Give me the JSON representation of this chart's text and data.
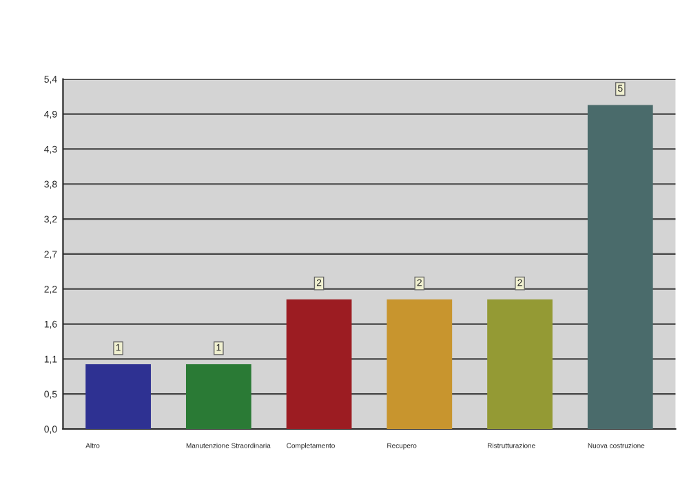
{
  "chart_data": {
    "type": "bar",
    "categories": [
      "Altro",
      "Manutenzione Straordinaria",
      "Completamento",
      "Recupero",
      "Ristrutturazione",
      "Nuova costruzione"
    ],
    "values": [
      1,
      1,
      2,
      2,
      2,
      5
    ],
    "colors": [
      "#2e3192",
      "#2a7a35",
      "#9c1c22",
      "#c8952e",
      "#949a34",
      "#4a6b6b"
    ],
    "ylim": [
      0,
      5.4
    ],
    "yticks": [
      {
        "value": 0,
        "label": "0,0"
      },
      {
        "value": 0.54,
        "label": "0,5"
      },
      {
        "value": 1.08,
        "label": "1,1"
      },
      {
        "value": 1.62,
        "label": "1,6"
      },
      {
        "value": 2.16,
        "label": "2,2"
      },
      {
        "value": 2.7,
        "label": "2,7"
      },
      {
        "value": 3.24,
        "label": "3,2"
      },
      {
        "value": 3.78,
        "label": "3,8"
      },
      {
        "value": 4.32,
        "label": "4,3"
      },
      {
        "value": 4.86,
        "label": "4,9"
      },
      {
        "value": 5.4,
        "label": "5,4"
      }
    ],
    "grid": "y",
    "data_labels": true
  }
}
